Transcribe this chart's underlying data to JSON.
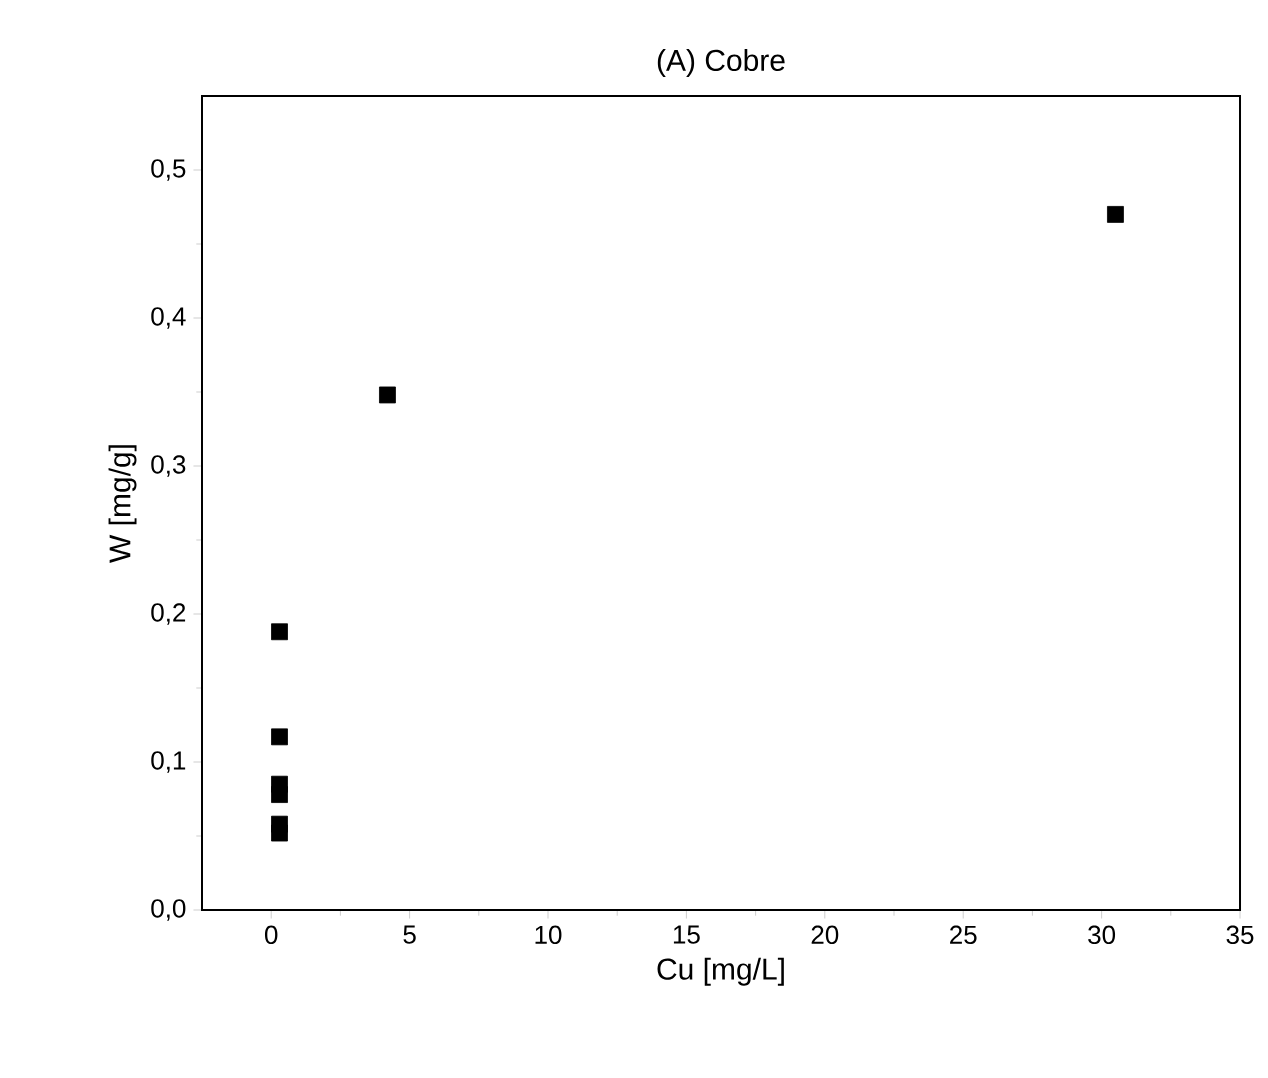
{
  "chart_data": {
    "type": "scatter",
    "title": "(A) Cobre",
    "xlabel": "Cu [mg/L]",
    "ylabel": "W [mg/g]",
    "x": [
      0.3,
      0.3,
      0.3,
      0.3,
      0.3,
      0.3,
      4.2,
      30.5
    ],
    "values": [
      0.188,
      0.117,
      0.085,
      0.078,
      0.058,
      0.052,
      0.348,
      0.47
    ],
    "color": "#000000",
    "marker": "square",
    "xlim": [
      -2.5,
      35
    ],
    "xticks": [
      0,
      5,
      10,
      15,
      20,
      25,
      30,
      35
    ],
    "ylim": [
      0,
      0.55
    ],
    "yticks": [
      {
        "value": 0,
        "label": "0,0"
      },
      {
        "value": 0.1,
        "label": "0,1"
      },
      {
        "value": 0.2,
        "label": "0,2"
      },
      {
        "value": 0.3,
        "label": "0,3"
      },
      {
        "value": 0.4,
        "label": "0,4"
      },
      {
        "value": 0.5,
        "label": "0,5"
      }
    ],
    "grid": false
  }
}
